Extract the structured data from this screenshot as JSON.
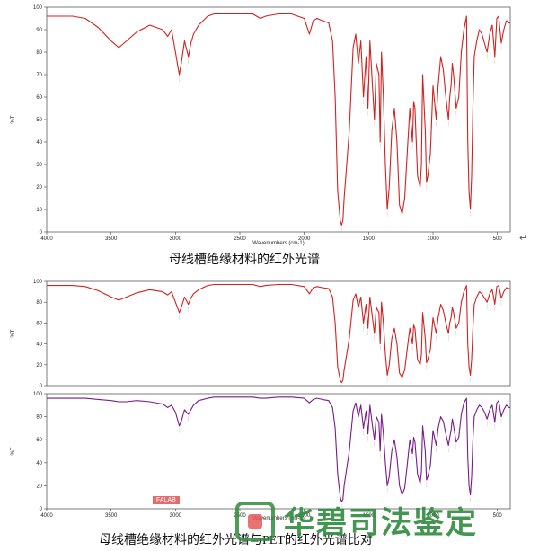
{
  "captions": {
    "top": "母线槽绝缘材料的红外光谱",
    "bottom": "母线槽绝缘材料的红外光谱与PET的红外光谱比对"
  },
  "watermark": {
    "tag": "FALAB",
    "text": "华碧司法鉴定"
  },
  "colors": {
    "red_series": "#d42020",
    "purple_series": "#7a1a8c",
    "watermark_green": "#2e8b3e"
  },
  "chart_data": [
    {
      "type": "line",
      "id": "chart1",
      "xlabel": "Wavenumbers (cm-1)",
      "ylabel": "%T",
      "xlim": [
        4000,
        400
      ],
      "ylim": [
        0,
        100
      ],
      "x_reversed": true,
      "xticks": [
        "4000",
        "3500",
        "3000",
        "2500",
        "2000",
        "1500",
        "1000",
        "500"
      ],
      "yticks": [
        "0",
        "10",
        "20",
        "30",
        "40",
        "50",
        "60",
        "70",
        "80",
        "90",
        "100"
      ],
      "series": [
        {
          "color": "#d42020",
          "x": [
            4000,
            3900,
            3800,
            3700,
            3600,
            3500,
            3440,
            3380,
            3300,
            3200,
            3100,
            3060,
            3030,
            3000,
            2970,
            2955,
            2930,
            2900,
            2880,
            2860,
            2820,
            2750,
            2700,
            2600,
            2500,
            2400,
            2340,
            2300,
            2200,
            2100,
            2000,
            1960,
            1930,
            1900,
            1860,
            1810,
            1780,
            1760,
            1740,
            1720,
            1710,
            1700,
            1690,
            1650,
            1620,
            1600,
            1580,
            1560,
            1540,
            1520,
            1505,
            1490,
            1470,
            1455,
            1440,
            1420,
            1410,
            1400,
            1385,
            1370,
            1355,
            1340,
            1320,
            1300,
            1280,
            1260,
            1240,
            1220,
            1200,
            1180,
            1160,
            1150,
            1140,
            1120,
            1100,
            1090,
            1080,
            1060,
            1050,
            1040,
            1020,
            1000,
            975,
            960,
            940,
            920,
            900,
            880,
            870,
            860,
            850,
            840,
            820,
            800,
            780,
            760,
            740,
            730,
            720,
            710,
            700,
            690,
            680,
            660,
            640,
            620,
            600,
            580,
            560,
            540,
            520,
            505,
            490,
            470,
            450,
            430,
            410,
            400
          ],
          "y": [
            96,
            96,
            96,
            95,
            91,
            85,
            82,
            85,
            89,
            92,
            90,
            87,
            90,
            80,
            70,
            75,
            85,
            78,
            84,
            88,
            92,
            96,
            97,
            97,
            97,
            97,
            95,
            96,
            97,
            97,
            95,
            88,
            94,
            95,
            94,
            93,
            85,
            60,
            18,
            5,
            3,
            5,
            15,
            45,
            82,
            88,
            75,
            85,
            60,
            78,
            55,
            85,
            65,
            50,
            75,
            70,
            40,
            80,
            60,
            30,
            10,
            20,
            45,
            55,
            40,
            12,
            8,
            15,
            35,
            55,
            40,
            58,
            55,
            25,
            20,
            30,
            70,
            45,
            22,
            25,
            35,
            65,
            50,
            65,
            78,
            72,
            60,
            50,
            60,
            65,
            75,
            70,
            55,
            60,
            80,
            90,
            96,
            40,
            18,
            10,
            25,
            55,
            78,
            85,
            90,
            88,
            84,
            80,
            88,
            92,
            78,
            95,
            96,
            84,
            90,
            94,
            93,
            93
          ]
        }
      ]
    },
    {
      "type": "line",
      "id": "chart2",
      "xlabel": "",
      "ylabel": "%T",
      "xlim": [
        4000,
        400
      ],
      "ylim": [
        0,
        100
      ],
      "x_reversed": true,
      "xticks": [],
      "yticks": [
        "0",
        "20",
        "40",
        "60",
        "80",
        "100"
      ],
      "series": [
        {
          "color": "#d42020",
          "x": [
            4000,
            3900,
            3800,
            3700,
            3600,
            3500,
            3440,
            3380,
            3300,
            3200,
            3100,
            3060,
            3030,
            3000,
            2970,
            2955,
            2930,
            2900,
            2880,
            2860,
            2820,
            2750,
            2700,
            2600,
            2500,
            2400,
            2340,
            2300,
            2200,
            2100,
            2000,
            1960,
            1930,
            1900,
            1860,
            1810,
            1780,
            1760,
            1740,
            1720,
            1710,
            1700,
            1690,
            1650,
            1620,
            1600,
            1580,
            1560,
            1540,
            1520,
            1505,
            1490,
            1470,
            1455,
            1440,
            1420,
            1410,
            1400,
            1385,
            1370,
            1355,
            1340,
            1320,
            1300,
            1280,
            1260,
            1240,
            1220,
            1200,
            1180,
            1160,
            1150,
            1140,
            1120,
            1100,
            1090,
            1080,
            1060,
            1050,
            1040,
            1020,
            1000,
            975,
            960,
            940,
            920,
            900,
            880,
            870,
            860,
            850,
            840,
            820,
            800,
            780,
            760,
            740,
            730,
            720,
            710,
            700,
            690,
            680,
            660,
            640,
            620,
            600,
            580,
            560,
            540,
            520,
            505,
            490,
            470,
            450,
            430,
            410,
            400
          ],
          "y": [
            96,
            96,
            96,
            95,
            91,
            85,
            82,
            85,
            89,
            92,
            90,
            87,
            90,
            80,
            70,
            75,
            85,
            78,
            84,
            88,
            92,
            96,
            97,
            97,
            97,
            97,
            95,
            96,
            97,
            97,
            95,
            88,
            94,
            95,
            94,
            93,
            85,
            60,
            18,
            5,
            3,
            5,
            15,
            45,
            82,
            88,
            75,
            85,
            60,
            78,
            55,
            85,
            65,
            50,
            75,
            70,
            40,
            80,
            60,
            30,
            10,
            20,
            45,
            55,
            40,
            12,
            8,
            15,
            35,
            55,
            40,
            58,
            55,
            25,
            20,
            30,
            70,
            45,
            22,
            25,
            35,
            65,
            50,
            65,
            78,
            72,
            60,
            50,
            60,
            65,
            75,
            70,
            55,
            60,
            80,
            90,
            96,
            40,
            18,
            10,
            25,
            55,
            78,
            85,
            90,
            88,
            84,
            80,
            88,
            92,
            78,
            95,
            96,
            84,
            90,
            94,
            93,
            93
          ]
        }
      ]
    },
    {
      "type": "line",
      "id": "chart3",
      "xlabel": "Wavenumbers (cm-1)",
      "ylabel": "%T",
      "xlim": [
        4000,
        400
      ],
      "ylim": [
        0,
        100
      ],
      "x_reversed": true,
      "xticks": [
        "4000",
        "3500",
        "3000",
        "2500",
        "2000",
        "1500",
        "1000",
        "500"
      ],
      "yticks": [
        "0",
        "20",
        "40",
        "60",
        "80",
        "100"
      ],
      "series": [
        {
          "color": "#7a1a8c",
          "x": [
            4000,
            3900,
            3800,
            3700,
            3600,
            3500,
            3440,
            3380,
            3300,
            3200,
            3100,
            3060,
            3030,
            3000,
            2970,
            2955,
            2930,
            2900,
            2880,
            2860,
            2820,
            2750,
            2700,
            2600,
            2500,
            2400,
            2340,
            2300,
            2200,
            2100,
            2000,
            1960,
            1930,
            1900,
            1860,
            1810,
            1780,
            1760,
            1740,
            1720,
            1710,
            1700,
            1690,
            1650,
            1620,
            1600,
            1580,
            1560,
            1540,
            1520,
            1505,
            1490,
            1470,
            1455,
            1440,
            1420,
            1410,
            1400,
            1385,
            1370,
            1355,
            1340,
            1320,
            1300,
            1280,
            1260,
            1240,
            1220,
            1200,
            1180,
            1160,
            1150,
            1140,
            1120,
            1100,
            1090,
            1080,
            1060,
            1050,
            1040,
            1020,
            1000,
            975,
            960,
            940,
            920,
            900,
            880,
            870,
            860,
            850,
            840,
            820,
            800,
            780,
            760,
            740,
            730,
            720,
            710,
            700,
            690,
            680,
            660,
            640,
            620,
            600,
            580,
            560,
            540,
            520,
            505,
            490,
            470,
            450,
            430,
            410,
            400
          ],
          "y": [
            96,
            96,
            96,
            96,
            95,
            94,
            93,
            93,
            94,
            93,
            91,
            88,
            90,
            84,
            72,
            76,
            86,
            82,
            86,
            90,
            94,
            96,
            97,
            97,
            97,
            97,
            96,
            96,
            97,
            97,
            96,
            92,
            95,
            96,
            95,
            94,
            88,
            70,
            30,
            10,
            6,
            8,
            20,
            50,
            85,
            92,
            80,
            90,
            70,
            85,
            65,
            90,
            72,
            60,
            80,
            75,
            50,
            82,
            65,
            40,
            20,
            28,
            50,
            60,
            45,
            20,
            12,
            18,
            38,
            60,
            48,
            62,
            58,
            30,
            22,
            32,
            72,
            50,
            25,
            28,
            38,
            68,
            55,
            70,
            80,
            76,
            65,
            55,
            62,
            68,
            78,
            72,
            58,
            62,
            82,
            92,
            96,
            45,
            20,
            12,
            28,
            60,
            80,
            86,
            90,
            88,
            84,
            78,
            86,
            90,
            75,
            92,
            94,
            80,
            86,
            90,
            88,
            88
          ]
        }
      ]
    }
  ]
}
